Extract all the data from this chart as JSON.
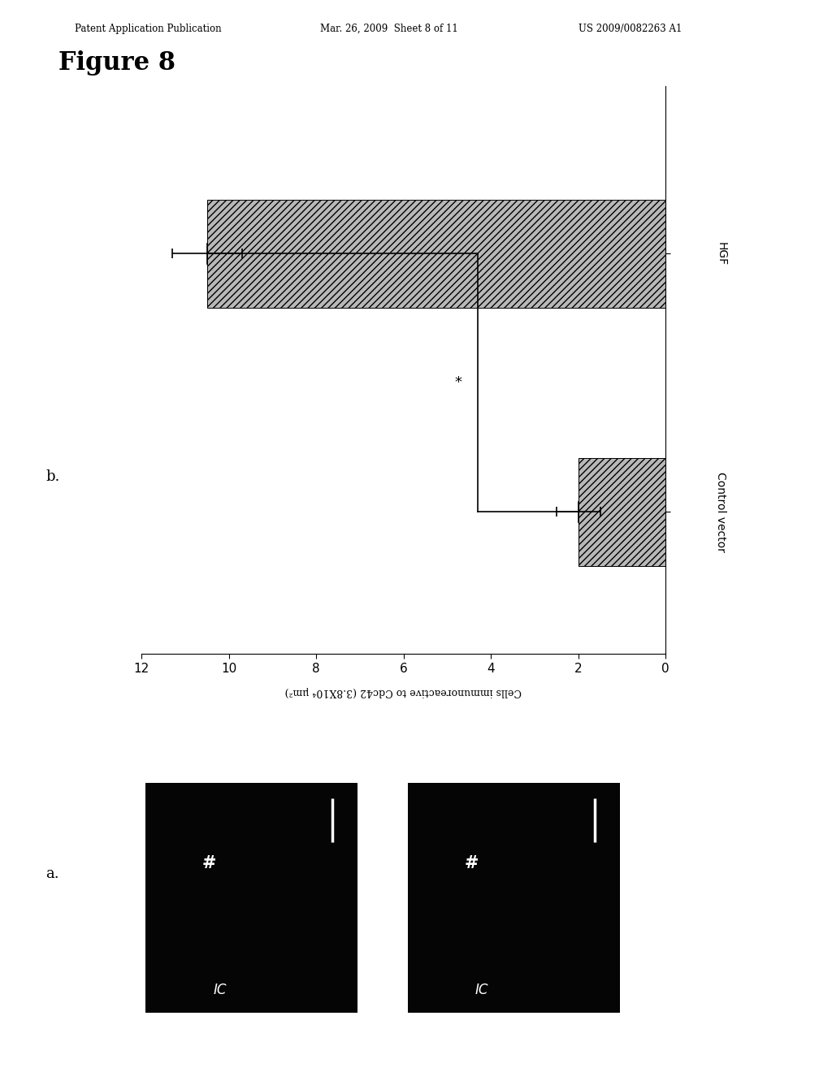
{
  "header_left": "Patent Application Publication",
  "header_mid": "Mar. 26, 2009  Sheet 8 of 11",
  "header_right": "US 2009/0082263 A1",
  "figure_label": "Figure 8",
  "panel_b_label": "b.",
  "panel_a_label": "a.",
  "bar_categories": [
    "HGF",
    "Control vector"
  ],
  "bar_values": [
    10.5,
    2.0
  ],
  "bar_errors": [
    0.8,
    0.5
  ],
  "bar_color": "#b8b8b8",
  "bar_hatch": "////",
  "xlim_display": [
    0,
    12
  ],
  "xticks": [
    0,
    2,
    4,
    6,
    8,
    10,
    12
  ],
  "xlabel": "Cells immunoreactive to Cdc42 (3.8X10⁴ μm²)",
  "significance_label": "*",
  "background_color": "#ffffff",
  "image_bg": "#050505",
  "image_label_hash": "#",
  "image_label_ic": "IC"
}
